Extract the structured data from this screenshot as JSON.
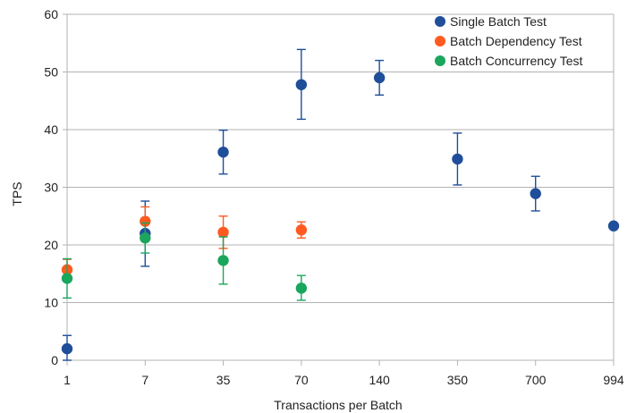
{
  "chart_data": {
    "type": "scatter",
    "title": "",
    "xlabel": "Transactions per Batch",
    "ylabel": "TPS",
    "categories": [
      "1",
      "7",
      "35",
      "70",
      "140",
      "350",
      "700",
      "994"
    ],
    "ylim": [
      0,
      60
    ],
    "yticks": [
      0,
      10,
      20,
      30,
      40,
      50,
      60
    ],
    "grid": "horizontal",
    "legend_position": "top-right",
    "series": [
      {
        "name": "Single Batch Test",
        "color": "#1f4e9a",
        "points": [
          {
            "x": "1",
            "y": 2.0,
            "err_low": 0.0,
            "err_high": 4.3
          },
          {
            "x": "7",
            "y": 22.0,
            "err_low": 16.3,
            "err_high": 27.6
          },
          {
            "x": "35",
            "y": 36.1,
            "err_low": 32.3,
            "err_high": 39.9
          },
          {
            "x": "70",
            "y": 47.8,
            "err_low": 41.8,
            "err_high": 53.9
          },
          {
            "x": "140",
            "y": 49.0,
            "err_low": 46.0,
            "err_high": 52.0
          },
          {
            "x": "350",
            "y": 34.9,
            "err_low": 30.4,
            "err_high": 39.4
          },
          {
            "x": "700",
            "y": 28.9,
            "err_low": 25.9,
            "err_high": 31.9
          },
          {
            "x": "994",
            "y": 23.3,
            "err_low": 23.3,
            "err_high": 23.3
          }
        ]
      },
      {
        "name": "Batch Dependency Test",
        "color": "#ff5a1f",
        "points": [
          {
            "x": "1",
            "y": 15.7,
            "err_low": 13.9,
            "err_high": 17.5
          },
          {
            "x": "7",
            "y": 24.1,
            "err_low": 21.6,
            "err_high": 26.6
          },
          {
            "x": "35",
            "y": 22.2,
            "err_low": 19.4,
            "err_high": 25.0
          },
          {
            "x": "70",
            "y": 22.6,
            "err_low": 21.2,
            "err_high": 24.0
          }
        ]
      },
      {
        "name": "Batch Concurrency Test",
        "color": "#1aa65c",
        "points": [
          {
            "x": "1",
            "y": 14.2,
            "err_low": 10.8,
            "err_high": 17.6
          },
          {
            "x": "7",
            "y": 21.2,
            "err_low": 18.6,
            "err_high": 23.8
          },
          {
            "x": "35",
            "y": 17.3,
            "err_low": 13.2,
            "err_high": 21.4
          },
          {
            "x": "70",
            "y": 12.5,
            "err_low": 10.4,
            "err_high": 14.7
          }
        ]
      }
    ]
  }
}
